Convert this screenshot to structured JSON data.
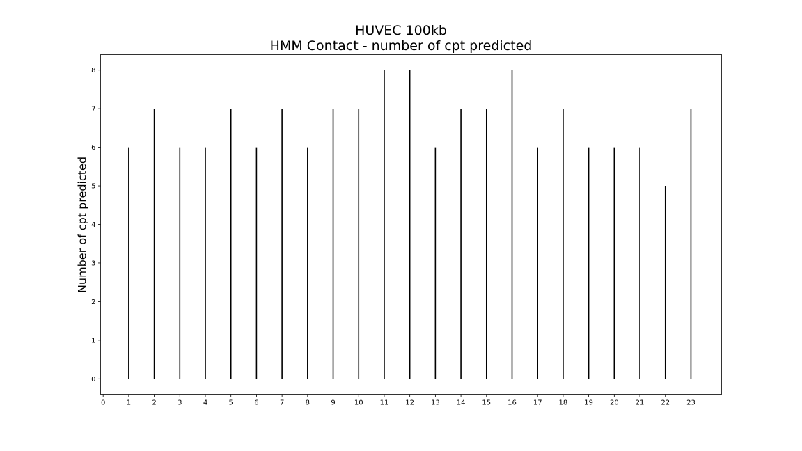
{
  "chart_data": {
    "type": "bar",
    "title": "HUVEC 100kb",
    "subtitle": "HMM Contact - number of cpt predicted",
    "xlabel": "",
    "ylabel": "Number of cpt predicted",
    "x": [
      1,
      2,
      3,
      4,
      5,
      6,
      7,
      8,
      9,
      10,
      11,
      12,
      13,
      14,
      15,
      16,
      17,
      18,
      19,
      20,
      21,
      22,
      23
    ],
    "values": [
      6,
      7,
      6,
      6,
      7,
      6,
      7,
      6,
      7,
      7,
      8,
      8,
      6,
      7,
      7,
      8,
      6,
      7,
      6,
      6,
      6,
      5,
      7
    ],
    "xticks": [
      "0",
      "1",
      "2",
      "3",
      "4",
      "5",
      "6",
      "7",
      "8",
      "9",
      "10",
      "11",
      "12",
      "13",
      "14",
      "15",
      "16",
      "17",
      "18",
      "19",
      "20",
      "21",
      "22",
      "23"
    ],
    "yticks": [
      "0",
      "1",
      "2",
      "3",
      "4",
      "5",
      "6",
      "7",
      "8"
    ],
    "xlim": [
      -0.1,
      24.2
    ],
    "ylim": [
      -0.4,
      8.4
    ],
    "grid": false,
    "bar_color": "#000000"
  }
}
